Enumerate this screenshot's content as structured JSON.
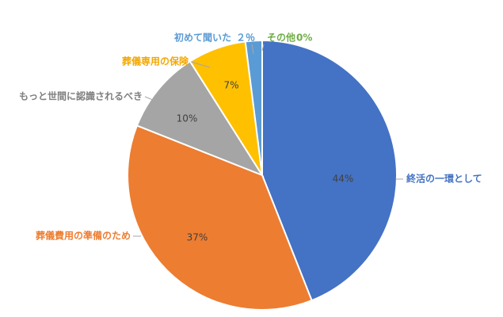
{
  "chart_data": {
    "type": "pie",
    "categories": [
      "終活の一環として",
      "葬儀費用の準備のため",
      "もっと世間に認識されるべき",
      "葬儀専用の保険",
      "初めて聞いた",
      "その他"
    ],
    "values": [
      44,
      37,
      10,
      7,
      2,
      0
    ],
    "value_labels": [
      "44%",
      "37%",
      "10%",
      "7%",
      "２％",
      "0%"
    ],
    "colors": [
      "#4472c4",
      "#ed7d31",
      "#a5a5a5",
      "#ffc000",
      "#5b9bd5",
      "#70ad47"
    ]
  }
}
